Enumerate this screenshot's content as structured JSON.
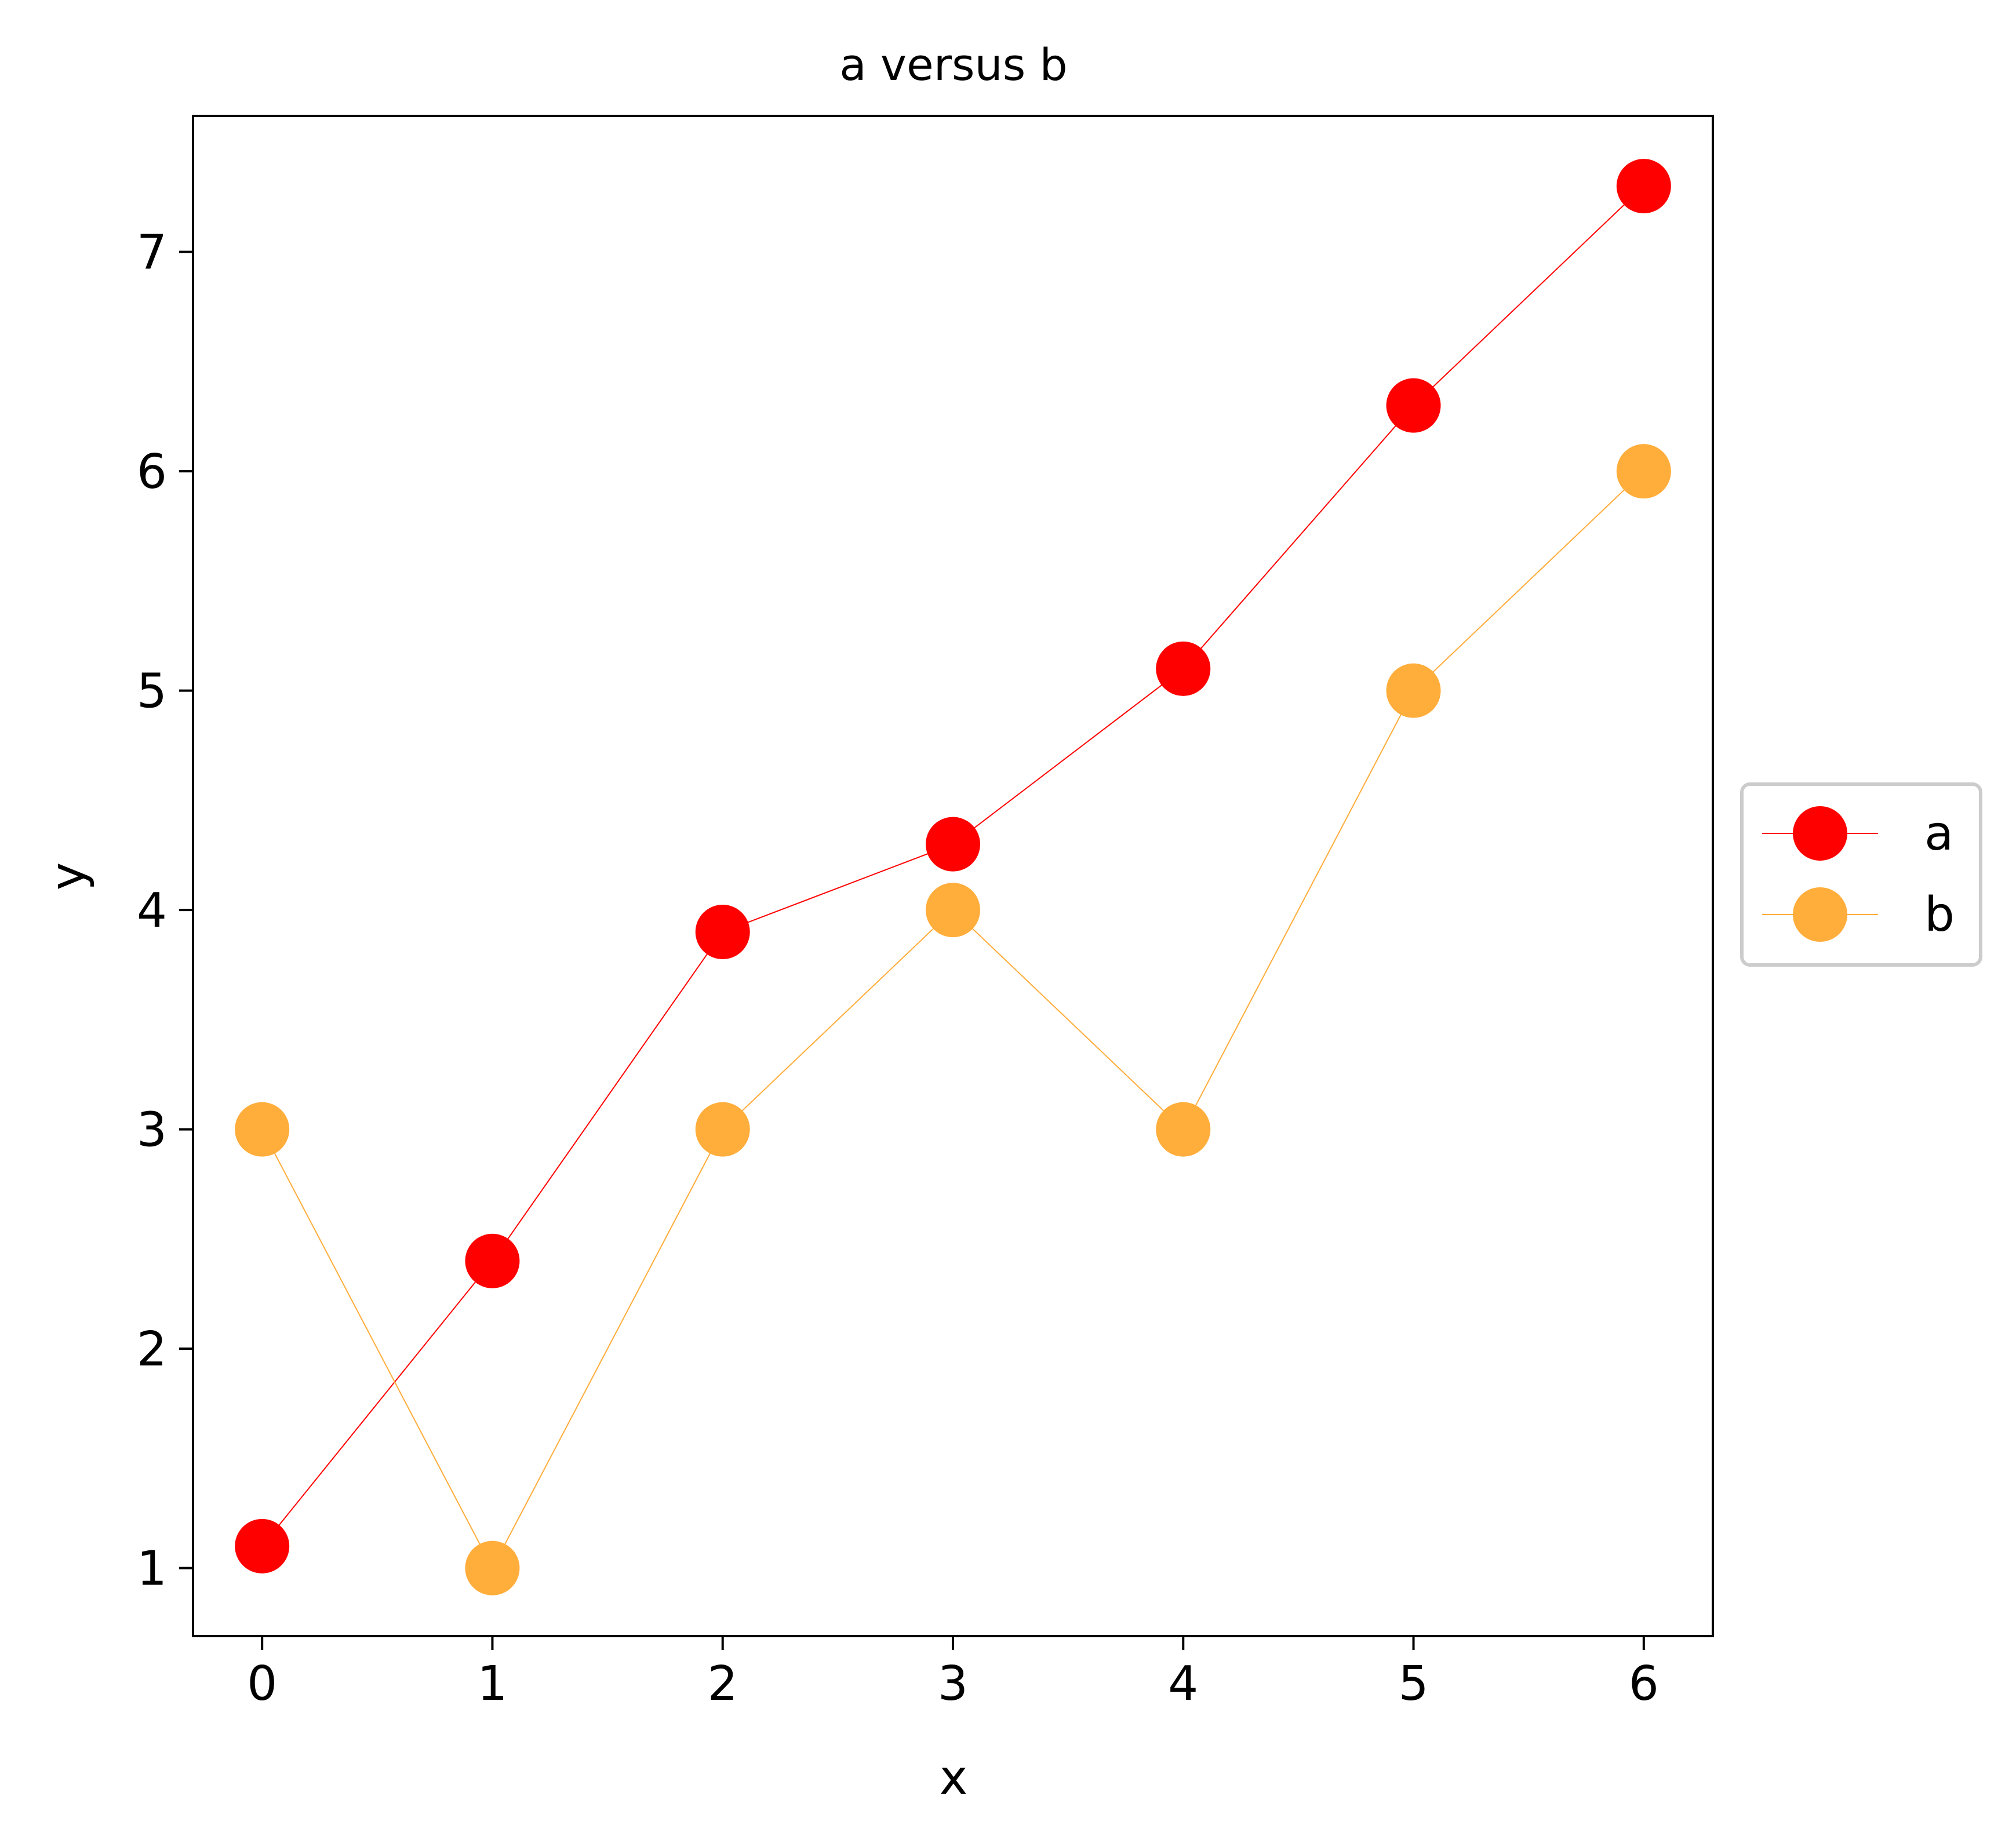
{
  "chart_data": {
    "type": "line",
    "title": "a versus b",
    "xlabel": "x",
    "ylabel": "y",
    "x": [
      0,
      1,
      2,
      3,
      4,
      5,
      6
    ],
    "xticks": [
      0,
      1,
      2,
      3,
      4,
      5,
      6
    ],
    "yticks": [
      1,
      2,
      3,
      4,
      5,
      6,
      7
    ],
    "xlim": [
      -0.3,
      6.3
    ],
    "ylim": [
      0.69,
      7.62
    ],
    "grid": false,
    "legend_position": "center-right-outside",
    "series": [
      {
        "name": "a",
        "color": "#ff0000",
        "marker": "circle",
        "values": [
          1.1,
          2.4,
          3.9,
          4.3,
          5.1,
          6.3,
          7.3
        ]
      },
      {
        "name": "b",
        "color": "#ffad3b",
        "marker": "circle",
        "values": [
          3,
          1,
          3,
          4,
          3,
          5,
          6
        ]
      }
    ]
  }
}
